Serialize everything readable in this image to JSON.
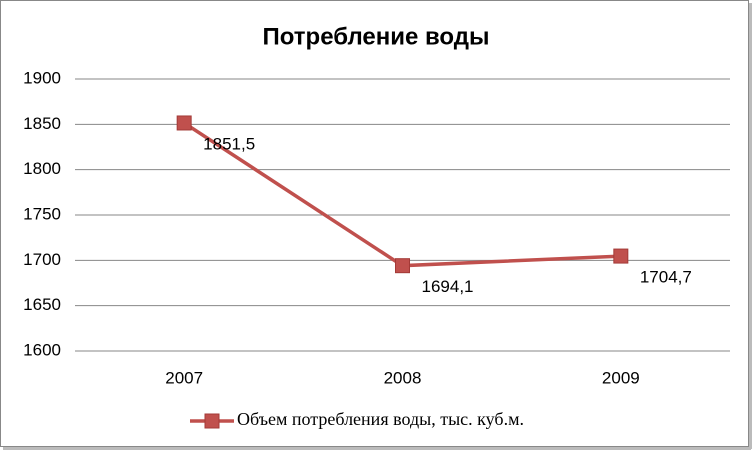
{
  "chart_data": {
    "type": "line",
    "title": "Потребление воды",
    "categories": [
      "2007",
      "2008",
      "2009"
    ],
    "series": [
      {
        "name": "Объем потребления воды, тыс. куб.м.",
        "color": "#c0504d",
        "values": [
          1851.5,
          1694.1,
          1704.7
        ],
        "value_labels": [
          "1851,5",
          "1694,1",
          "1704,7"
        ]
      }
    ],
    "ylim": [
      1600,
      1900
    ],
    "yticks": [
      1600,
      1650,
      1700,
      1750,
      1800,
      1850,
      1900
    ],
    "grid": true,
    "legend": "bottom"
  }
}
